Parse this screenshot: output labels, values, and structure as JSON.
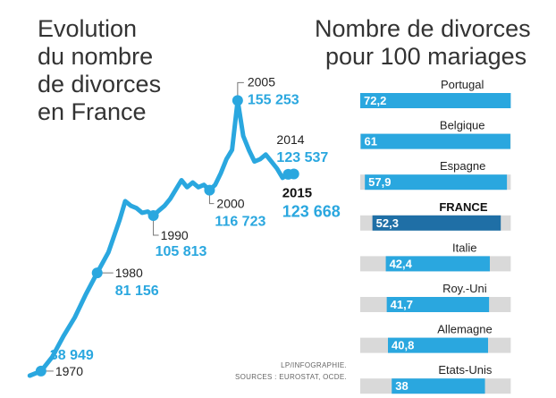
{
  "colors": {
    "line": "#2aa7df",
    "bar": "#2aa7df",
    "bar_highlight": "#1f6fa6",
    "track": "#d9d9d9",
    "leader": "#777777"
  },
  "left_title": [
    "Evolution",
    "du nombre",
    "de divorces",
    "en France"
  ],
  "right_title": [
    "Nombre de divorces",
    "pour 100 mariages"
  ],
  "source_lines": [
    "LP/INFOGRAPHIE.",
    "SOURCES : EUROSTAT, OCDE."
  ],
  "chart_data": [
    {
      "type": "line",
      "title": "Evolution du nombre de divorces en France",
      "x": [
        1968,
        1970,
        1972,
        1974,
        1976,
        1978,
        1980,
        1982,
        1984,
        1985,
        1986,
        1987,
        1988,
        1989,
        1990,
        1991,
        1992,
        1993,
        1994,
        1995,
        1996,
        1997,
        1998,
        1999,
        2000,
        2001,
        2002,
        2003,
        2004,
        2005,
        2006,
        2007,
        2008,
        2009,
        2010,
        2011,
        2012,
        2013,
        2014,
        2015
      ],
      "y": [
        37000,
        38949,
        45000,
        54000,
        62000,
        72000,
        81156,
        90000,
        104000,
        112000,
        110000,
        109000,
        107000,
        107500,
        105813,
        108000,
        110000,
        113000,
        117000,
        121000,
        118000,
        120000,
        118000,
        119000,
        116723,
        119000,
        124000,
        130000,
        134000,
        155253,
        140000,
        134000,
        129000,
        130000,
        132000,
        129000,
        126000,
        122000,
        123537,
        123668
      ],
      "xlim": [
        1967,
        2016
      ],
      "ylim": [
        32000,
        160000
      ],
      "annotations": [
        {
          "year": "1970",
          "value": "38 949",
          "x": 1970,
          "y": 38949
        },
        {
          "year": "1980",
          "value": "81 156",
          "x": 1980,
          "y": 81156
        },
        {
          "year": "1990",
          "value": "105 813",
          "x": 1990,
          "y": 105813
        },
        {
          "year": "2000",
          "value": "116 723",
          "x": 2000,
          "y": 116723
        },
        {
          "year": "2005",
          "value": "155 253",
          "x": 2005,
          "y": 155253
        },
        {
          "year": "2014",
          "value": "123 537",
          "x": 2014,
          "y": 123537
        },
        {
          "year": "2015",
          "value": "123 668",
          "x": 2015,
          "y": 123668
        }
      ]
    },
    {
      "type": "bar",
      "title": "Nombre de divorces pour 100 mariages",
      "categories": [
        "Portugal",
        "Belgique",
        "Espagne",
        "FRANCE",
        "Italie",
        "Roy.-Uni",
        "Allemagne",
        "Etats-Unis"
      ],
      "values": [
        72.2,
        61,
        57.9,
        52.3,
        42.4,
        41.7,
        40.8,
        38
      ],
      "value_labels": [
        "72,2",
        "61",
        "57,9",
        "52,3",
        "42,4",
        "41,7",
        "40,8",
        "38"
      ],
      "highlight": "FRANCE",
      "xlim": [
        0,
        100
      ]
    }
  ]
}
